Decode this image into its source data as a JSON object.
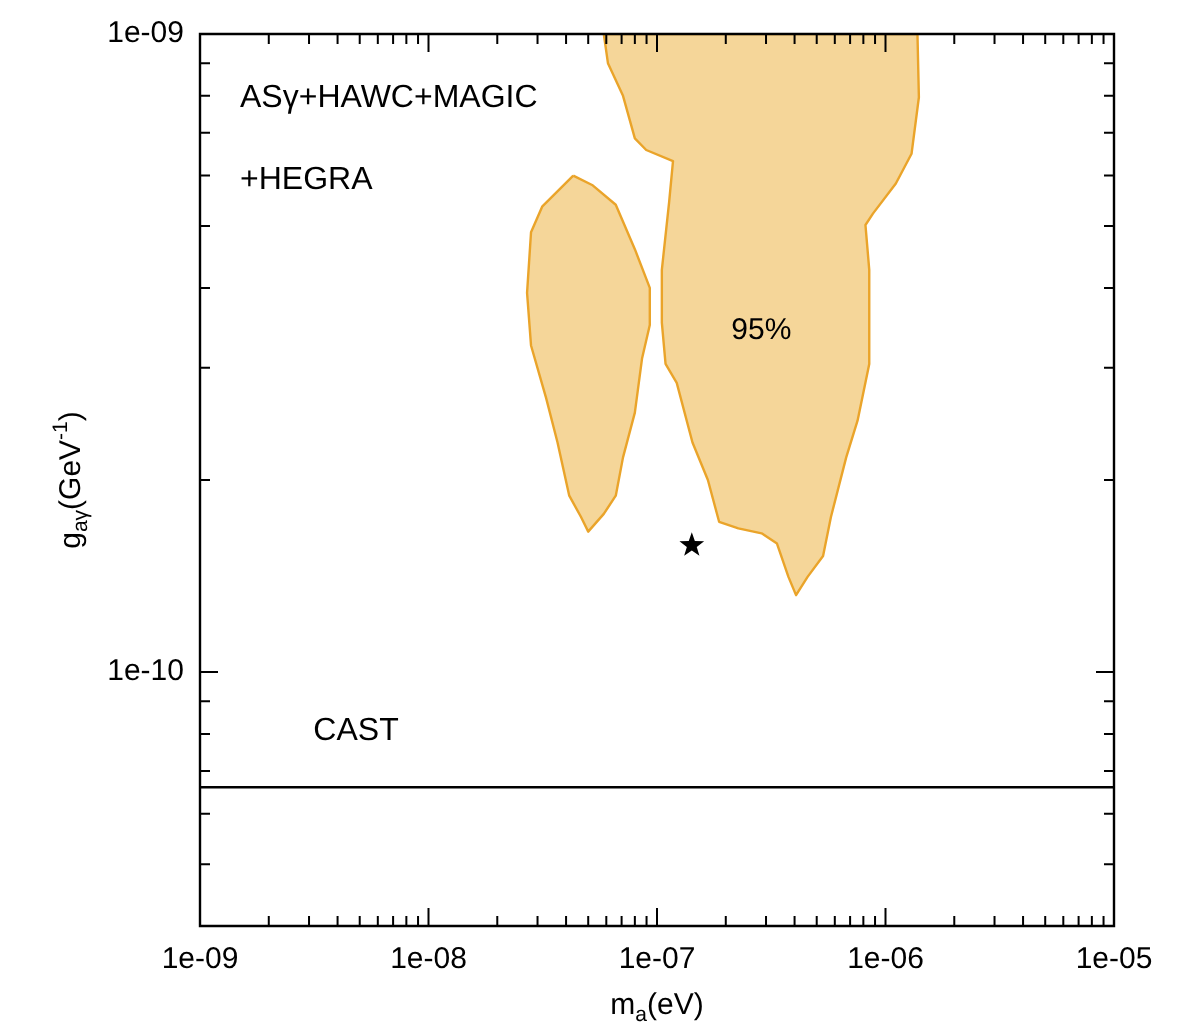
{
  "chart_data": {
    "type": "area",
    "xlabel": "m$_{a}$(eV)",
    "ylabel": "g$_{aγ}$(GeV$^{-1}$)",
    "log": "xy",
    "grid": false,
    "legend": false,
    "xlim": [
      1e-09,
      1e-05
    ],
    "ylim": [
      4e-11,
      1e-09
    ],
    "xticks": [
      {
        "value": 1e-09,
        "label": "1e-09"
      },
      {
        "value": 2e-09,
        "label": null
      },
      {
        "value": 3e-09,
        "label": null
      },
      {
        "value": 4e-09,
        "label": null
      },
      {
        "value": 5e-09,
        "label": null
      },
      {
        "value": 6e-09,
        "label": null
      },
      {
        "value": 7e-09,
        "label": null
      },
      {
        "value": 8e-09,
        "label": null
      },
      {
        "value": 9e-09,
        "label": null
      },
      {
        "value": 1e-08,
        "label": "1e-08"
      },
      {
        "value": 2e-08,
        "label": null
      },
      {
        "value": 3e-08,
        "label": null
      },
      {
        "value": 4e-08,
        "label": null
      },
      {
        "value": 5e-08,
        "label": null
      },
      {
        "value": 6e-08,
        "label": null
      },
      {
        "value": 7e-08,
        "label": null
      },
      {
        "value": 8e-08,
        "label": null
      },
      {
        "value": 9e-08,
        "label": null
      },
      {
        "value": 1e-07,
        "label": "1e-07"
      },
      {
        "value": 2e-07,
        "label": null
      },
      {
        "value": 3e-07,
        "label": null
      },
      {
        "value": 4e-07,
        "label": null
      },
      {
        "value": 5e-07,
        "label": null
      },
      {
        "value": 6e-07,
        "label": null
      },
      {
        "value": 7e-07,
        "label": null
      },
      {
        "value": 8e-07,
        "label": null
      },
      {
        "value": 9e-07,
        "label": null
      },
      {
        "value": 1e-06,
        "label": "1e-06"
      },
      {
        "value": 2e-06,
        "label": null
      },
      {
        "value": 3e-06,
        "label": null
      },
      {
        "value": 4e-06,
        "label": null
      },
      {
        "value": 5e-06,
        "label": null
      },
      {
        "value": 6e-06,
        "label": null
      },
      {
        "value": 7e-06,
        "label": null
      },
      {
        "value": 8e-06,
        "label": null
      },
      {
        "value": 9e-06,
        "label": null
      },
      {
        "value": 1e-05,
        "label": "1e-05"
      }
    ],
    "yticks": [
      {
        "value": 5e-11,
        "label": null
      },
      {
        "value": 6e-11,
        "label": null
      },
      {
        "value": 7e-11,
        "label": null
      },
      {
        "value": 8e-11,
        "label": null
      },
      {
        "value": 9e-11,
        "label": null
      },
      {
        "value": 1e-10,
        "label": "1e-10"
      },
      {
        "value": 2e-10,
        "label": null
      },
      {
        "value": 3e-10,
        "label": null
      },
      {
        "value": 4e-10,
        "label": null
      },
      {
        "value": 5e-10,
        "label": null
      },
      {
        "value": 6e-10,
        "label": null
      },
      {
        "value": 7e-10,
        "label": null
      },
      {
        "value": 8e-10,
        "label": null
      },
      {
        "value": 9e-10,
        "label": null
      },
      {
        "value": 1e-09,
        "label": "1e-09"
      }
    ],
    "series": [
      {
        "color": "#f5d699",
        "x": [
          4.3e-08,
          5.2e-08,
          6.6e-08,
          8e-08,
          9.3e-08,
          9.3e-08,
          8.6e-08,
          8e-08,
          7.1e-08,
          6.6e-08,
          5.85e-08,
          5e-08,
          4.65e-08,
          4.13e-08,
          3.67e-08,
          3.27e-08,
          2.81e-08,
          2.7e-08,
          2.81e-08,
          3.15e-08,
          4.3e-08
        ],
        "values": [
          6e-10,
          5.8e-10,
          5.4e-10,
          4.6e-10,
          4e-10,
          3.5e-10,
          3.1e-10,
          2.55e-10,
          2.17e-10,
          1.89e-10,
          1.77e-10,
          1.66e-10,
          1.75e-10,
          1.89e-10,
          2.29e-10,
          2.69e-10,
          3.25e-10,
          3.93e-10,
          4.89e-10,
          5.37e-10,
          6e-10
        ]
      },
      {
        "color": "#f5d699",
        "x": [
          5.85e-08,
          6.1e-08,
          7.1e-08,
          8e-08,
          8.97e-08,
          1.175e-07,
          1.13e-07,
          1.05e-07,
          1.05e-07,
          1.09e-07,
          1.22e-07,
          1.43e-07,
          1.67e-07,
          1.87e-07,
          2.27e-07,
          2.87e-07,
          3.35e-07,
          3.76e-07,
          4.06e-07,
          4.56e-07,
          5.33e-07,
          5.77e-07,
          6.73e-07,
          7.55e-07,
          8.49e-07,
          8.49e-07,
          8.17e-07,
          8.81e-07,
          1.11e-06,
          1.3e-06,
          1.4e-06,
          1.38e-06,
          5.85e-08
        ],
        "values": [
          1e-09,
          9e-10,
          8e-10,
          6.86e-10,
          6.58e-10,
          6.32e-10,
          5.45e-10,
          4.27e-10,
          3.53e-10,
          3.04e-10,
          2.84e-10,
          2.29e-10,
          2e-10,
          1.72e-10,
          1.68e-10,
          1.65e-10,
          1.59e-10,
          1.41e-10,
          1.32e-10,
          1.41e-10,
          1.52e-10,
          1.75e-10,
          2.17e-10,
          2.48e-10,
          3.04e-10,
          4.27e-10,
          5.02e-10,
          5.23e-10,
          5.83e-10,
          6.49e-10,
          7.96e-10,
          1e-09,
          1e-09
        ]
      },
      {
        "type": "scatter",
        "marker": "star",
        "color": "#000000",
        "x": [
          1.42e-07
        ],
        "values": [
          1.58e-10
        ]
      }
    ],
    "ref_lines": [
      {
        "axis": "y",
        "value": 6.6e-11,
        "label": "CAST",
        "color": "#000000"
      }
    ],
    "annotations": [
      "ASγ+HAWC+MAGIC",
      "+HEGRA",
      "95%"
    ]
  }
}
